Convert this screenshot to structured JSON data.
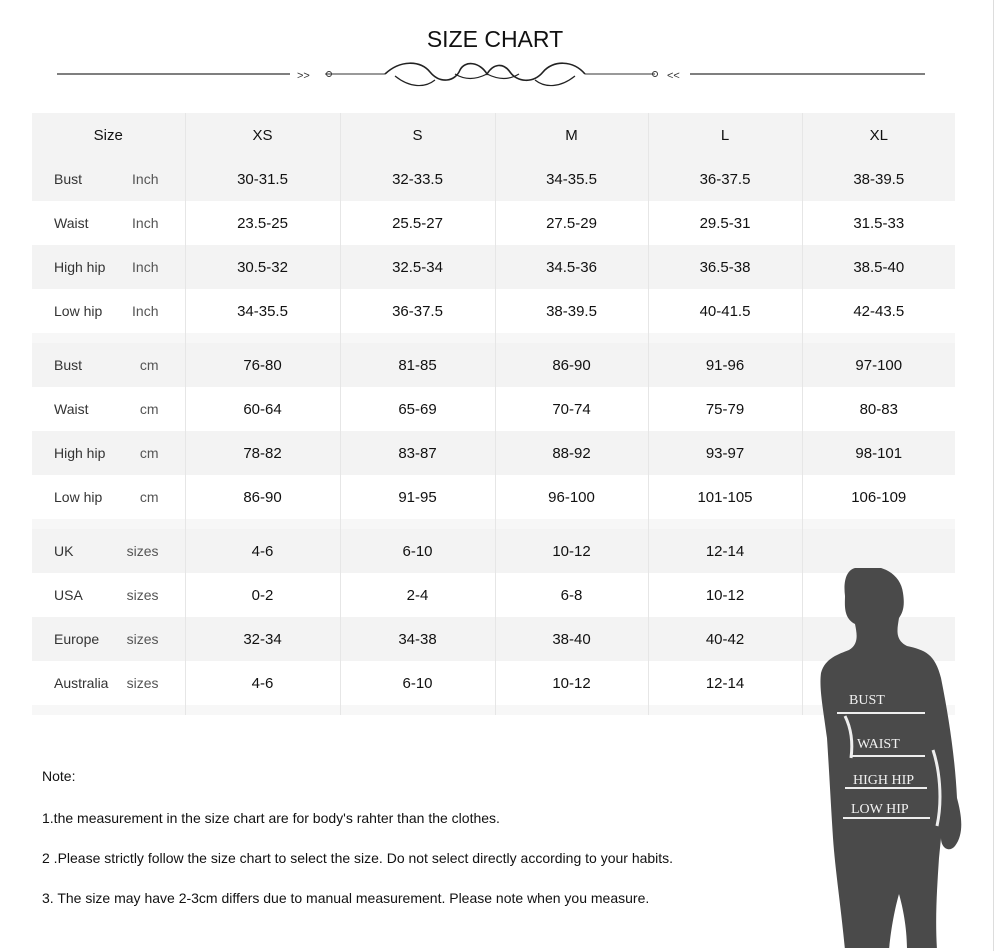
{
  "title": "SIZE CHART",
  "ornament": {
    "left_arrows": ">>",
    "right_arrows": "<<"
  },
  "header": [
    "Size",
    "XS",
    "S",
    "M",
    "L",
    "XL"
  ],
  "inch_rows": [
    {
      "label": "Bust",
      "unit": "Inch",
      "values": [
        "30-31.5",
        "32-33.5",
        "34-35.5",
        "36-37.5",
        "38-39.5"
      ]
    },
    {
      "label": "Waist",
      "unit": "Inch",
      "values": [
        "23.5-25",
        "25.5-27",
        "27.5-29",
        "29.5-31",
        "31.5-33"
      ]
    },
    {
      "label": "High hip",
      "unit": "Inch",
      "values": [
        "30.5-32",
        "32.5-34",
        "34.5-36",
        "36.5-38",
        "38.5-40"
      ]
    },
    {
      "label": "Low hip",
      "unit": "Inch",
      "values": [
        "34-35.5",
        "36-37.5",
        "38-39.5",
        "40-41.5",
        "42-43.5"
      ]
    }
  ],
  "cm_rows": [
    {
      "label": "Bust",
      "unit": "cm",
      "values": [
        "76-80",
        "81-85",
        "86-90",
        "91-96",
        "97-100"
      ]
    },
    {
      "label": "Waist",
      "unit": "cm",
      "values": [
        "60-64",
        "65-69",
        "70-74",
        "75-79",
        "80-83"
      ]
    },
    {
      "label": "High hip",
      "unit": "cm",
      "values": [
        "78-82",
        "83-87",
        "88-92",
        "93-97",
        "98-101"
      ]
    },
    {
      "label": "Low hip",
      "unit": "cm",
      "values": [
        "86-90",
        "91-95",
        "96-100",
        "101-105",
        "106-109"
      ]
    }
  ],
  "size_rows": [
    {
      "label": "UK",
      "unit": "sizes",
      "values": [
        "4-6",
        "6-10",
        "10-12",
        "12-14",
        ""
      ]
    },
    {
      "label": "USA",
      "unit": "sizes",
      "values": [
        "0-2",
        "2-4",
        "6-8",
        "10-12",
        ""
      ]
    },
    {
      "label": "Europe",
      "unit": "sizes",
      "values": [
        "32-34",
        "34-38",
        "38-40",
        "40-42",
        ""
      ]
    },
    {
      "label": "Australia",
      "unit": "sizes",
      "values": [
        "4-6",
        "6-10",
        "10-12",
        "12-14",
        ""
      ]
    }
  ],
  "figure_labels": [
    "BUST",
    "WAIST",
    "HIGH HIP",
    "LOW HIP"
  ],
  "notes": {
    "heading": "Note:",
    "items": [
      "1.the measurement in the size chart are for body's rahter than the clothes.",
      "2 .Please strictly follow the size chart  to select the size. Do not select directly according to your habits.",
      "3. The size may have 2-3cm differs due to manual measurement. Please note when you measure."
    ]
  },
  "colors": {
    "silhouette": "#4a4a4a",
    "row_shade": "#f3f3f3"
  }
}
